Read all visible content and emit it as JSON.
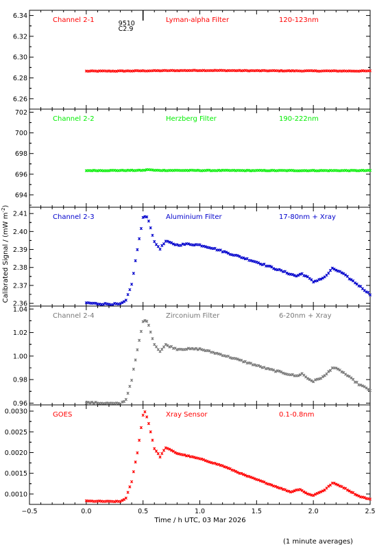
{
  "figure": {
    "ylabel": "Calibrated Signal / (mW m",
    "ylabel_sup": "-2",
    "ylabel_close": ")",
    "xlabel": "Time / h UTC, 03 Mar 2026",
    "footnote": "(1 minute averages)",
    "flare_annotation": {
      "line1": "9510",
      "line2": "C2.9",
      "time_h": 0.5
    }
  },
  "chart_data": [
    {
      "type": "scatter",
      "channel": "Channel 2-1",
      "filter": "Lyman-alpha Filter",
      "band": "120-123nm",
      "color": "#ff0000",
      "xlim": [
        -0.5,
        2.5
      ],
      "ylim": [
        6.25,
        6.345
      ],
      "yticks": [
        6.26,
        6.28,
        6.3,
        6.32,
        6.34
      ],
      "ytick_labels": [
        "6.26",
        "6.28",
        "6.30",
        "6.32",
        "6.34"
      ],
      "x_start": 0.0,
      "x_end": 2.5,
      "profile": [
        [
          0.0,
          6.2865
        ],
        [
          0.3,
          6.2866
        ],
        [
          0.5,
          6.2868
        ],
        [
          1.0,
          6.2872
        ],
        [
          1.5,
          6.2869
        ],
        [
          2.0,
          6.2867
        ],
        [
          2.5,
          6.2866
        ]
      ],
      "noise": 0.0003
    },
    {
      "type": "scatter",
      "channel": "Channel 2-2",
      "filter": "Herzberg Filter",
      "band": "190-222nm",
      "color": "#00ee00",
      "xlim": [
        -0.5,
        2.5
      ],
      "ylim": [
        692.8,
        702.3
      ],
      "yticks": [
        694,
        696,
        698,
        700,
        702
      ],
      "ytick_labels": [
        "694",
        "696",
        "698",
        "700",
        "702"
      ],
      "x_start": 0.0,
      "x_end": 2.5,
      "profile": [
        [
          0.0,
          696.35
        ],
        [
          0.5,
          696.37
        ],
        [
          0.55,
          696.45
        ],
        [
          0.6,
          696.37
        ],
        [
          1.0,
          696.36
        ],
        [
          1.5,
          696.35
        ],
        [
          2.0,
          696.35
        ],
        [
          2.5,
          696.35
        ]
      ],
      "noise": 0.03
    },
    {
      "type": "scatter",
      "channel": "Channel 2-3",
      "filter": "Aluminium Filter",
      "band": "17-80nm + Xray",
      "color": "#0000cc",
      "xlim": [
        -0.5,
        2.5
      ],
      "ylim": [
        2.3585,
        2.4135
      ],
      "yticks": [
        2.36,
        2.37,
        2.38,
        2.39,
        2.4,
        2.41
      ],
      "ytick_labels": [
        "2.36",
        "2.37",
        "2.38",
        "2.39",
        "2.40",
        "2.41"
      ],
      "x_start": 0.0,
      "x_end": 2.5,
      "profile": [
        [
          0.0,
          2.3603
        ],
        [
          0.1,
          2.3598
        ],
        [
          0.3,
          2.3595
        ],
        [
          0.35,
          2.3615
        ],
        [
          0.4,
          2.3705
        ],
        [
          0.45,
          2.39
        ],
        [
          0.5,
          2.4075
        ],
        [
          0.53,
          2.409
        ],
        [
          0.56,
          2.404
        ],
        [
          0.6,
          2.394
        ],
        [
          0.65,
          2.3905
        ],
        [
          0.7,
          2.3945
        ],
        [
          0.8,
          2.3925
        ],
        [
          0.9,
          2.393
        ],
        [
          1.0,
          2.3925
        ],
        [
          1.1,
          2.391
        ],
        [
          1.3,
          2.387
        ],
        [
          1.5,
          2.383
        ],
        [
          1.7,
          2.3785
        ],
        [
          1.85,
          2.3752
        ],
        [
          1.9,
          2.3765
        ],
        [
          1.95,
          2.3745
        ],
        [
          2.0,
          2.372
        ],
        [
          2.1,
          2.3745
        ],
        [
          2.17,
          2.3795
        ],
        [
          2.25,
          2.377
        ],
        [
          2.4,
          2.37
        ],
        [
          2.5,
          2.365
        ]
      ],
      "noise": 0.0004
    },
    {
      "type": "scatter",
      "channel": "Channel 2-4",
      "filter": "Zirconium Filter",
      "band": "6-20nm + Xray",
      "color": "#777777",
      "xlim": [
        -0.5,
        2.5
      ],
      "ylim": [
        0.9585,
        1.0425
      ],
      "yticks": [
        0.96,
        0.98,
        1.0,
        1.02,
        1.04
      ],
      "ytick_labels": [
        "0.96",
        "0.98",
        "1.00",
        "1.02",
        "1.04"
      ],
      "x_start": 0.0,
      "x_end": 2.5,
      "profile": [
        [
          0.0,
          0.9605
        ],
        [
          0.2,
          0.9598
        ],
        [
          0.3,
          0.9595
        ],
        [
          0.35,
          0.963
        ],
        [
          0.4,
          0.98
        ],
        [
          0.45,
          1.005
        ],
        [
          0.5,
          1.029
        ],
        [
          0.53,
          1.031
        ],
        [
          0.56,
          1.023
        ],
        [
          0.6,
          1.01
        ],
        [
          0.65,
          1.004
        ],
        [
          0.7,
          1.0095
        ],
        [
          0.8,
          1.006
        ],
        [
          0.9,
          1.006
        ],
        [
          1.0,
          1.006
        ],
        [
          1.2,
          1.001
        ],
        [
          1.4,
          0.995
        ],
        [
          1.6,
          0.989
        ],
        [
          1.85,
          0.983
        ],
        [
          1.9,
          0.985
        ],
        [
          1.95,
          0.981
        ],
        [
          2.0,
          0.9785
        ],
        [
          2.1,
          0.983
        ],
        [
          2.17,
          0.9905
        ],
        [
          2.25,
          0.987
        ],
        [
          2.4,
          0.976
        ],
        [
          2.5,
          0.971
        ]
      ],
      "noise": 0.0006
    },
    {
      "type": "scatter",
      "channel": "GOES",
      "filter": "Xray Sensor",
      "band": "0.1-0.8nm",
      "color": "#ff0000",
      "xlim": [
        -0.5,
        2.5
      ],
      "ylim": [
        0.00075,
        0.00315
      ],
      "yticks": [
        0.001,
        0.0015,
        0.002,
        0.0025,
        0.003
      ],
      "ytick_labels": [
        "0.0010",
        "0.0015",
        "0.0020",
        "0.0025",
        "0.0030"
      ],
      "x_start": 0.0,
      "x_end": 2.5,
      "profile": [
        [
          0.0,
          0.00083
        ],
        [
          0.2,
          0.00082
        ],
        [
          0.3,
          0.00082
        ],
        [
          0.35,
          0.0009
        ],
        [
          0.4,
          0.0013
        ],
        [
          0.45,
          0.002
        ],
        [
          0.5,
          0.0029
        ],
        [
          0.52,
          0.003
        ],
        [
          0.55,
          0.0027
        ],
        [
          0.6,
          0.0021
        ],
        [
          0.65,
          0.0019
        ],
        [
          0.7,
          0.00212
        ],
        [
          0.8,
          0.00198
        ],
        [
          1.0,
          0.00185
        ],
        [
          1.2,
          0.00168
        ],
        [
          1.4,
          0.00145
        ],
        [
          1.6,
          0.00125
        ],
        [
          1.8,
          0.00105
        ],
        [
          1.88,
          0.00112
        ],
        [
          1.95,
          0.001
        ],
        [
          2.0,
          0.00097
        ],
        [
          2.1,
          0.0011
        ],
        [
          2.17,
          0.00127
        ],
        [
          2.25,
          0.00118
        ],
        [
          2.4,
          0.00095
        ],
        [
          2.5,
          0.00087
        ]
      ],
      "noise": 8e-06
    }
  ],
  "x_axis": {
    "ticks": [
      -0.5,
      0.0,
      0.5,
      1.0,
      1.5,
      2.0,
      2.5
    ],
    "tick_labels": [
      "−0.5",
      "0.0",
      "0.5",
      "1.0",
      "1.5",
      "2.0",
      "2.5"
    ]
  }
}
